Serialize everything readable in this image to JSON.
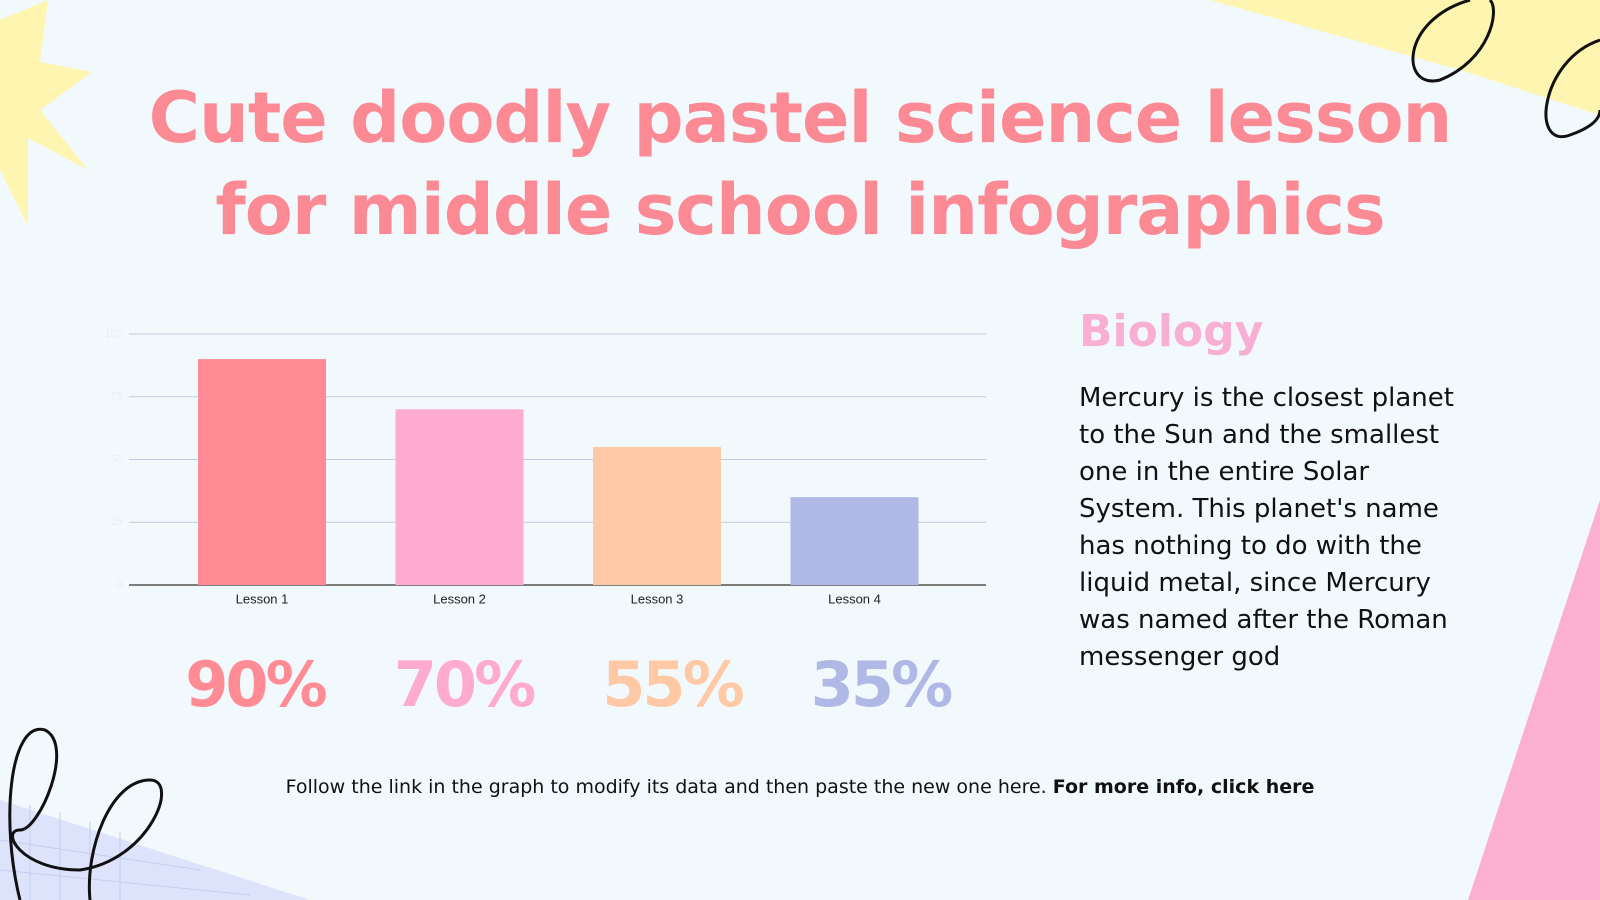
{
  "title": "Cute doodly pastel science lesson for middle school infographics",
  "chart_data": {
    "type": "bar",
    "categories": [
      "Lesson 1",
      "Lesson 2",
      "Lesson 3",
      "Lesson 4"
    ],
    "values": [
      90,
      70,
      55,
      35
    ],
    "value_labels": [
      "90%",
      "70%",
      "55%",
      "35%"
    ],
    "colors": [
      "#ff8b94",
      "#ffaad0",
      "#ffc9a5",
      "#b0b9e6"
    ],
    "ylim": [
      0,
      100
    ],
    "yticks": [
      0,
      25,
      50,
      75,
      100
    ],
    "grid": true
  },
  "side": {
    "heading": "Biology",
    "text": "Mercury is the closest planet to the Sun and the smallest one in the entire Solar System. This planet's name has nothing to do with the liquid metal, since Mercury was named after the Roman messenger god"
  },
  "footer": {
    "text": "Follow the link in the graph to modify its data and then paste the new one here.",
    "link": "For more info, click here"
  }
}
